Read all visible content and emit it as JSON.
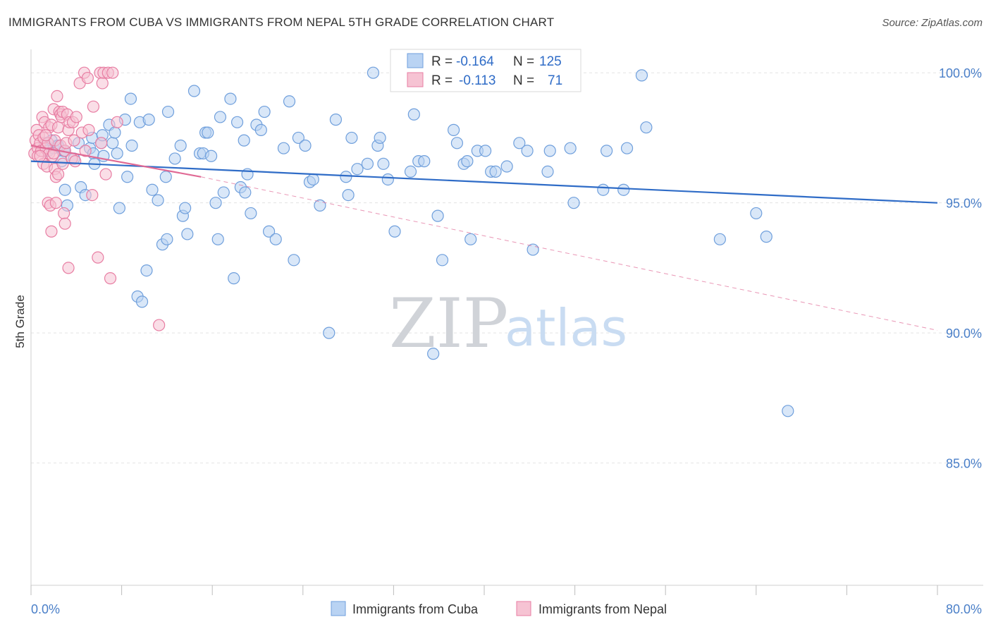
{
  "title": "IMMIGRANTS FROM CUBA VS IMMIGRANTS FROM NEPAL 5TH GRADE CORRELATION CHART",
  "source": "Source: ZipAtlas.com",
  "watermark": {
    "zip": "ZIP",
    "atlas": "atlas"
  },
  "stats": {
    "r_label": "R =",
    "n_label": "N =",
    "cuba": {
      "r": "-0.164",
      "n": "125"
    },
    "nepal": {
      "r": "-0.113",
      "n": "71"
    }
  },
  "colors": {
    "cuba_fill": "#b9d3f3",
    "cuba_stroke": "#6f9fdc",
    "cuba_line": "#2f6cc7",
    "nepal_fill": "#f6c3d3",
    "nepal_stroke": "#e87ea3",
    "nepal_line": "#e06a95"
  },
  "chart_data": {
    "type": "scatter",
    "ylabel": "5th Grade",
    "x_tick_labels": [
      "0.0%",
      "80.0%"
    ],
    "y_tick_labels": [
      "100.0%",
      "95.0%",
      "90.0%",
      "85.0%"
    ],
    "xlim": [
      0,
      80
    ],
    "ylim": [
      80.3,
      100.9
    ],
    "grid": true,
    "legend_position": "bottom-center",
    "series": [
      {
        "name": "Immigrants from Cuba",
        "trend": {
          "x0": 0,
          "y0": 96.6,
          "x1": 80,
          "y1": 95.0
        },
        "points": [
          [
            1.2,
            97.3
          ],
          [
            1.5,
            97.0
          ],
          [
            2.0,
            97.1
          ],
          [
            2.3,
            97.2
          ],
          [
            2.7,
            96.6
          ],
          [
            2.9,
            97.0
          ],
          [
            3.0,
            95.5
          ],
          [
            3.2,
            94.9
          ],
          [
            3.8,
            96.7
          ],
          [
            4.4,
            95.6
          ],
          [
            4.8,
            95.3
          ],
          [
            5.2,
            97.1
          ],
          [
            5.4,
            97.5
          ],
          [
            5.5,
            96.9
          ],
          [
            6.2,
            97.3
          ],
          [
            6.4,
            96.8
          ],
          [
            6.9,
            98.0
          ],
          [
            7.2,
            97.3
          ],
          [
            7.6,
            96.9
          ],
          [
            7.8,
            94.8
          ],
          [
            8.3,
            98.2
          ],
          [
            8.5,
            96.0
          ],
          [
            8.8,
            99.0
          ],
          [
            8.9,
            97.2
          ],
          [
            9.4,
            91.4
          ],
          [
            9.6,
            98.1
          ],
          [
            9.8,
            91.2
          ],
          [
            10.2,
            92.4
          ],
          [
            10.4,
            98.2
          ],
          [
            10.7,
            95.5
          ],
          [
            11.2,
            95.1
          ],
          [
            11.6,
            93.4
          ],
          [
            11.9,
            96.0
          ],
          [
            12.0,
            93.6
          ],
          [
            12.1,
            98.5
          ],
          [
            12.7,
            96.7
          ],
          [
            13.2,
            97.2
          ],
          [
            13.4,
            94.5
          ],
          [
            13.6,
            94.8
          ],
          [
            13.8,
            93.8
          ],
          [
            14.4,
            99.3
          ],
          [
            14.9,
            96.9
          ],
          [
            15.2,
            96.9
          ],
          [
            15.4,
            97.7
          ],
          [
            15.6,
            97.7
          ],
          [
            15.9,
            96.8
          ],
          [
            16.3,
            95.0
          ],
          [
            16.5,
            93.6
          ],
          [
            16.7,
            98.3
          ],
          [
            17.0,
            95.4
          ],
          [
            17.6,
            99.0
          ],
          [
            17.9,
            92.1
          ],
          [
            18.2,
            98.1
          ],
          [
            18.5,
            95.6
          ],
          [
            18.8,
            97.4
          ],
          [
            18.9,
            95.4
          ],
          [
            19.1,
            96.1
          ],
          [
            19.4,
            94.6
          ],
          [
            19.9,
            98.0
          ],
          [
            20.3,
            97.8
          ],
          [
            20.6,
            98.5
          ],
          [
            21.0,
            93.9
          ],
          [
            21.6,
            93.6
          ],
          [
            22.3,
            97.1
          ],
          [
            22.8,
            98.9
          ],
          [
            23.2,
            92.8
          ],
          [
            23.6,
            97.5
          ],
          [
            24.2,
            97.2
          ],
          [
            24.6,
            95.8
          ],
          [
            24.9,
            95.9
          ],
          [
            25.5,
            94.9
          ],
          [
            26.3,
            90.0
          ],
          [
            26.9,
            98.2
          ],
          [
            27.8,
            96.0
          ],
          [
            28.0,
            95.3
          ],
          [
            28.3,
            97.5
          ],
          [
            28.8,
            96.3
          ],
          [
            29.7,
            96.5
          ],
          [
            30.2,
            100.0
          ],
          [
            30.6,
            97.2
          ],
          [
            30.8,
            97.5
          ],
          [
            31.1,
            96.5
          ],
          [
            31.5,
            95.9
          ],
          [
            32.1,
            93.9
          ],
          [
            33.5,
            96.2
          ],
          [
            33.8,
            98.4
          ],
          [
            34.2,
            96.6
          ],
          [
            34.7,
            96.6
          ],
          [
            35.5,
            89.2
          ],
          [
            35.9,
            94.5
          ],
          [
            36.3,
            92.8
          ],
          [
            37.3,
            97.8
          ],
          [
            37.6,
            97.3
          ],
          [
            38.2,
            96.5
          ],
          [
            38.5,
            96.6
          ],
          [
            38.8,
            93.6
          ],
          [
            39.4,
            97.0
          ],
          [
            40.1,
            97.0
          ],
          [
            40.6,
            96.2
          ],
          [
            41.0,
            96.2
          ],
          [
            42.0,
            96.4
          ],
          [
            43.1,
            97.3
          ],
          [
            43.8,
            97.0
          ],
          [
            44.3,
            93.2
          ],
          [
            45.6,
            96.2
          ],
          [
            45.8,
            97.0
          ],
          [
            47.6,
            97.1
          ],
          [
            47.9,
            95.0
          ],
          [
            50.5,
            95.5
          ],
          [
            50.8,
            97.0
          ],
          [
            52.3,
            95.5
          ],
          [
            52.6,
            97.1
          ],
          [
            53.9,
            99.9
          ],
          [
            54.3,
            97.9
          ],
          [
            60.8,
            93.6
          ],
          [
            64.0,
            94.6
          ],
          [
            64.9,
            93.7
          ],
          [
            66.8,
            87.0
          ],
          [
            3.0,
            97.0
          ],
          [
            4.2,
            97.3
          ],
          [
            5.6,
            96.5
          ],
          [
            6.3,
            97.6
          ],
          [
            1.8,
            97.4
          ],
          [
            2.4,
            97.2
          ],
          [
            7.4,
            97.7
          ]
        ]
      },
      {
        "name": "Immigrants from Nepal",
        "trend": {
          "x0": 0,
          "y0": 97.2,
          "x1": 15,
          "y1": 96.0,
          "dash_to": {
            "x": 80,
            "y": 90.1
          }
        },
        "points": [
          [
            0.3,
            96.9
          ],
          [
            0.4,
            97.4
          ],
          [
            0.5,
            97.8
          ],
          [
            0.6,
            97.1
          ],
          [
            0.6,
            96.8
          ],
          [
            0.7,
            97.6
          ],
          [
            0.8,
            97.3
          ],
          [
            0.9,
            97.0
          ],
          [
            1.0,
            98.3
          ],
          [
            1.1,
            96.5
          ],
          [
            1.1,
            97.5
          ],
          [
            1.2,
            98.1
          ],
          [
            1.3,
            97.1
          ],
          [
            1.4,
            96.4
          ],
          [
            1.5,
            97.3
          ],
          [
            1.5,
            95.0
          ],
          [
            1.6,
            97.9
          ],
          [
            1.6,
            96.9
          ],
          [
            1.7,
            94.9
          ],
          [
            1.8,
            98.0
          ],
          [
            1.8,
            93.9
          ],
          [
            1.9,
            96.8
          ],
          [
            2.0,
            98.6
          ],
          [
            2.1,
            97.4
          ],
          [
            2.1,
            96.3
          ],
          [
            2.2,
            96.0
          ],
          [
            2.2,
            95.0
          ],
          [
            2.3,
            99.1
          ],
          [
            2.4,
            97.9
          ],
          [
            2.4,
            96.1
          ],
          [
            2.5,
            98.5
          ],
          [
            2.6,
            97.2
          ],
          [
            2.6,
            98.4
          ],
          [
            2.7,
            98.3
          ],
          [
            2.8,
            98.5
          ],
          [
            2.8,
            96.5
          ],
          [
            2.9,
            94.6
          ],
          [
            3.0,
            94.2
          ],
          [
            3.0,
            97.0
          ],
          [
            3.1,
            97.3
          ],
          [
            3.2,
            98.4
          ],
          [
            3.3,
            92.5
          ],
          [
            3.3,
            97.8
          ],
          [
            3.4,
            98.1
          ],
          [
            3.6,
            96.7
          ],
          [
            3.7,
            98.1
          ],
          [
            3.8,
            97.4
          ],
          [
            3.9,
            96.6
          ],
          [
            4.0,
            98.3
          ],
          [
            4.3,
            99.6
          ],
          [
            4.5,
            97.7
          ],
          [
            4.7,
            100.0
          ],
          [
            5.0,
            99.8
          ],
          [
            5.1,
            97.8
          ],
          [
            5.4,
            95.3
          ],
          [
            5.5,
            98.7
          ],
          [
            5.9,
            92.9
          ],
          [
            6.1,
            100.0
          ],
          [
            6.3,
            99.6
          ],
          [
            6.4,
            100.0
          ],
          [
            6.6,
            96.1
          ],
          [
            6.8,
            100.0
          ],
          [
            7.0,
            92.1
          ],
          [
            7.2,
            100.0
          ],
          [
            7.6,
            98.1
          ],
          [
            11.3,
            90.3
          ],
          [
            1.3,
            97.6
          ],
          [
            2.0,
            96.9
          ],
          [
            0.8,
            96.8
          ],
          [
            4.8,
            97.0
          ],
          [
            6.2,
            97.3
          ]
        ]
      }
    ]
  }
}
